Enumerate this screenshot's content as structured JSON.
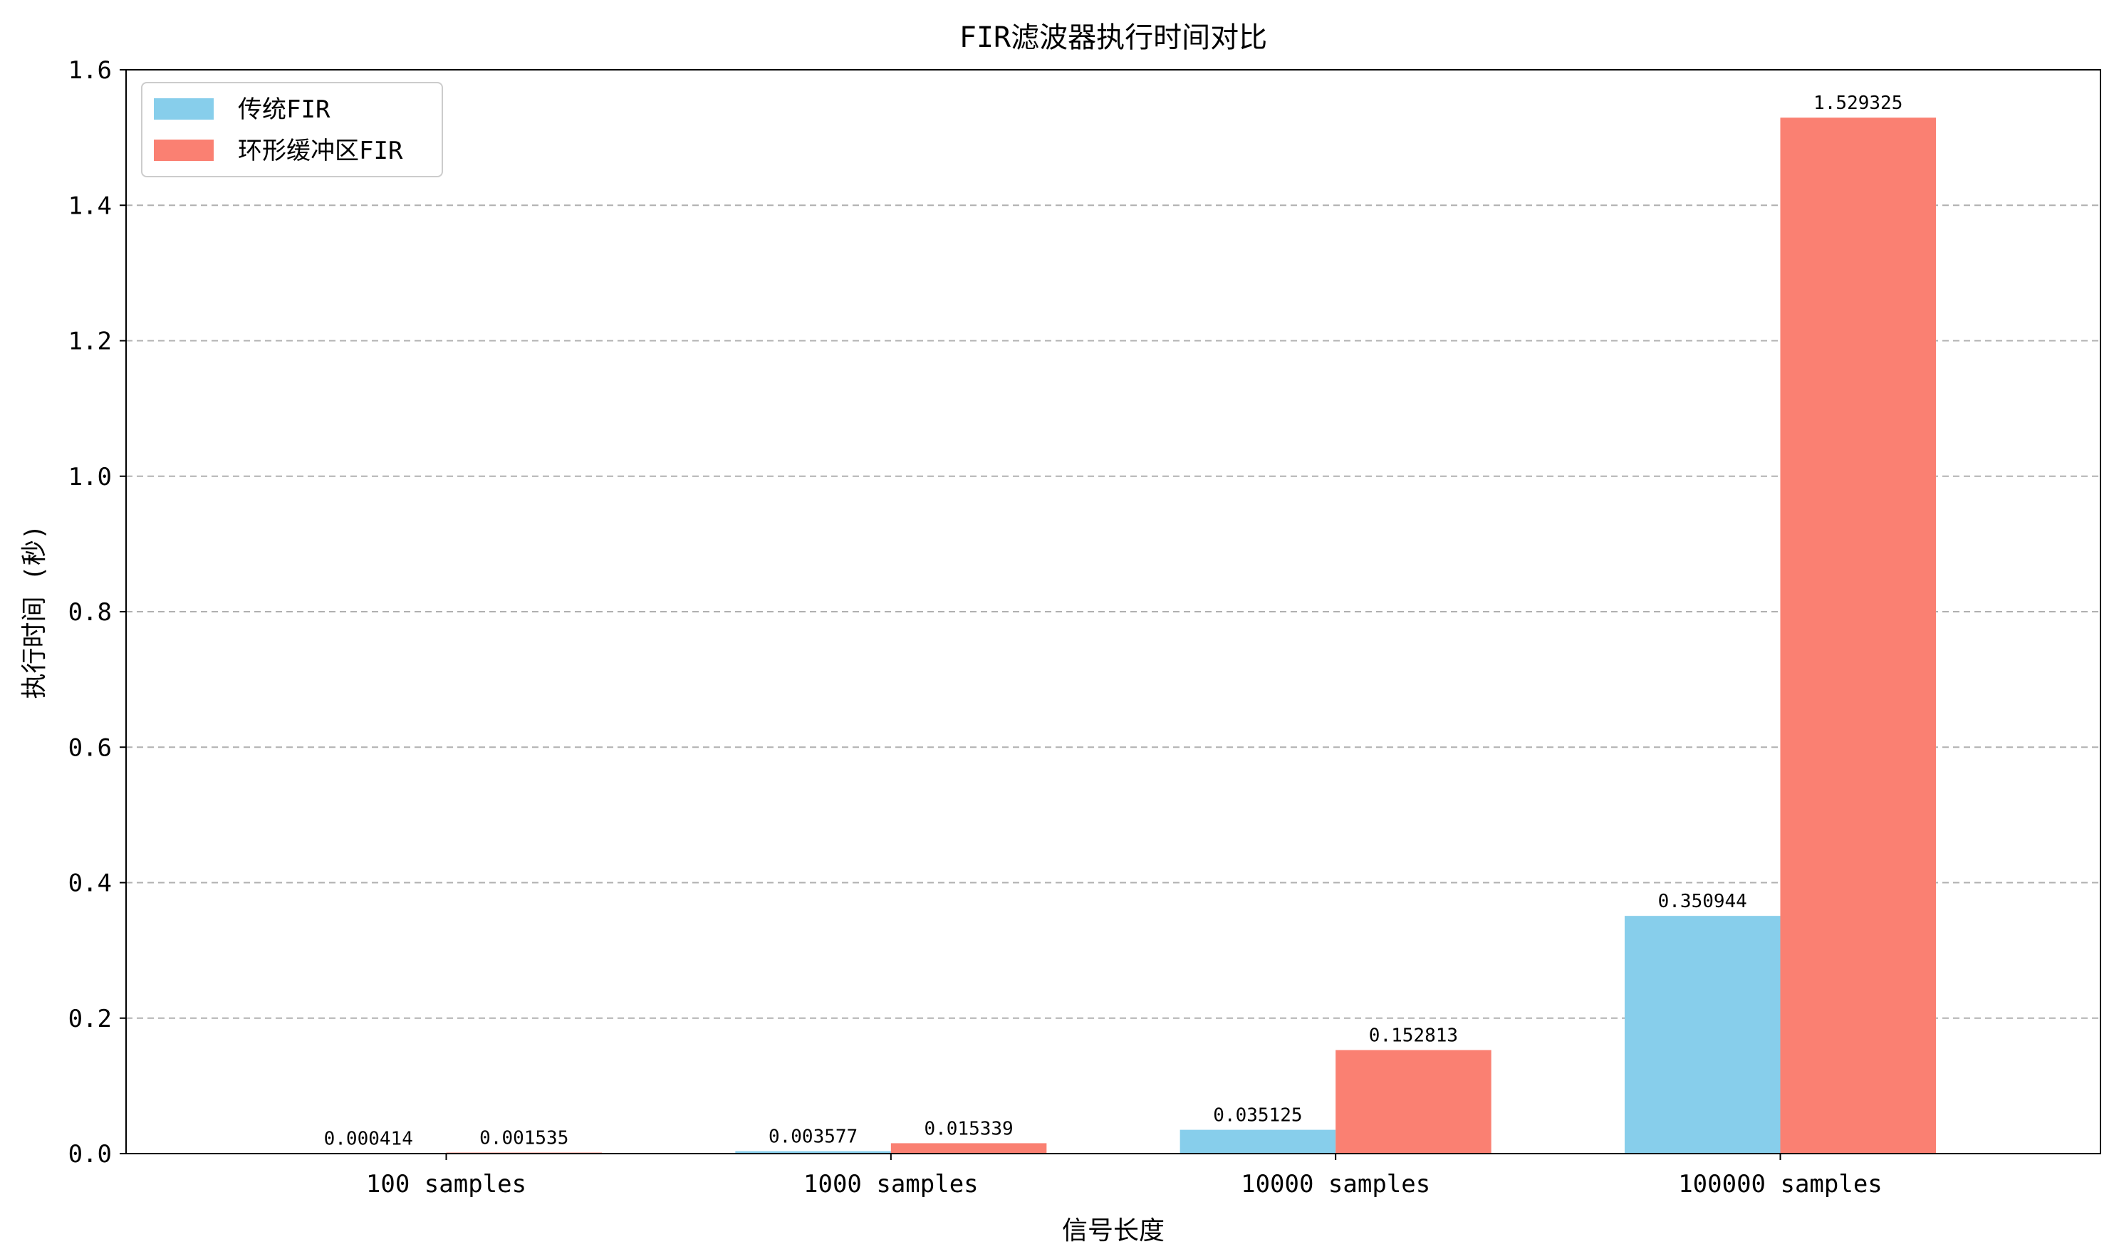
{
  "chart_data": {
    "type": "bar",
    "title": "FIR滤波器执行时间对比",
    "xlabel": "信号长度",
    "ylabel": "执行时间 (秒)",
    "categories": [
      "100 samples",
      "1000 samples",
      "10000 samples",
      "100000 samples"
    ],
    "series": [
      {
        "name": "传统FIR",
        "color": "#87CEEB",
        "values": [
          0.000414,
          0.003577,
          0.035125,
          0.350944
        ],
        "labels": [
          "0.000414",
          "0.003577",
          "0.035125",
          "0.350944"
        ]
      },
      {
        "name": "环形缓冲区FIR",
        "color": "#FA8072",
        "values": [
          0.001535,
          0.015339,
          0.152813,
          1.529325
        ],
        "labels": [
          "0.001535",
          "0.015339",
          "0.152813",
          "1.529325"
        ]
      }
    ],
    "ylim": [
      0,
      1.6
    ],
    "yticks": [
      "0.0",
      "0.2",
      "0.4",
      "0.6",
      "0.8",
      "1.0",
      "1.2",
      "1.4",
      "1.6"
    ],
    "grid": "y-dashed",
    "legend_position": "top-left"
  }
}
